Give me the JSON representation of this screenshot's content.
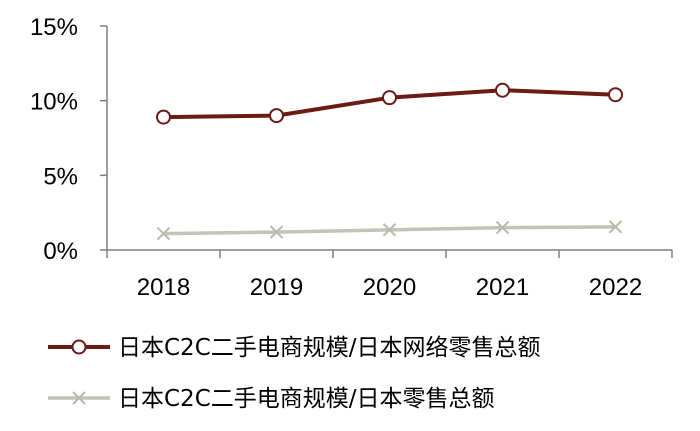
{
  "chart_data": {
    "type": "line",
    "categories": [
      "2018",
      "2019",
      "2020",
      "2021",
      "2022"
    ],
    "y_ticks": [
      "0%",
      "5%",
      "10%",
      "15%"
    ],
    "ylim": [
      0,
      15
    ],
    "grid": false,
    "legend_position": "bottom",
    "series": [
      {
        "name": "日本C2C二手电商规模/日本网络零售总额",
        "values": [
          8.9,
          9.0,
          10.2,
          10.7,
          10.4
        ],
        "color": "#6b1a14",
        "marker": "circle"
      },
      {
        "name": "日本C2C二手电商规模/日本零售总额",
        "values": [
          1.1,
          1.2,
          1.35,
          1.5,
          1.55
        ],
        "color": "#c2c4b6",
        "marker": "x"
      }
    ]
  }
}
